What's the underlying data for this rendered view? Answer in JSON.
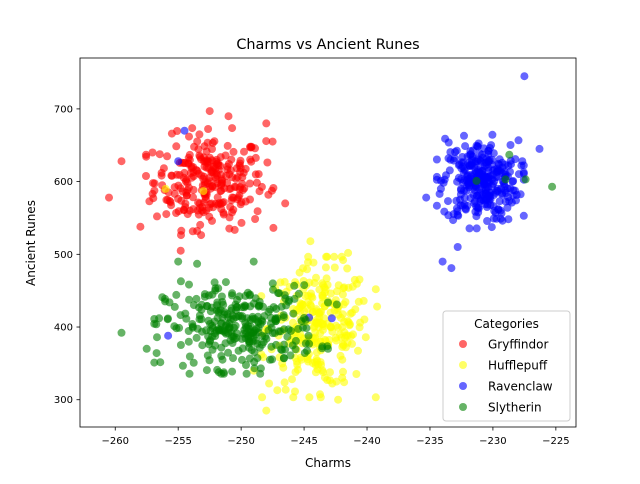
{
  "chart_data": {
    "type": "scatter",
    "title": "Charms vs Ancient Runes",
    "xlabel": "Charms",
    "ylabel": "Ancient Runes",
    "xlim": [
      -262.8,
      -223.4
    ],
    "ylim": [
      262.5,
      770
    ],
    "xticks": [
      -260,
      -255,
      -250,
      -245,
      -240,
      -235,
      -230,
      -225
    ],
    "xtick_labels": [
      "−260",
      "−255",
      "−250",
      "−245",
      "−240",
      "−235",
      "−230",
      "−225"
    ],
    "yticks": [
      300,
      400,
      500,
      600,
      700
    ],
    "ytick_labels": [
      "300",
      "400",
      "500",
      "600",
      "700"
    ],
    "grid": false,
    "legend": {
      "title": "Categories",
      "placement": "lower-right"
    },
    "series": [
      {
        "name": "Gryffindor",
        "color": "#ff0000",
        "cluster": {
          "cx": -252.5,
          "cy": 600,
          "sx": 2.2,
          "sy": 32,
          "n": 260
        },
        "outliers": [
          [
            -260.5,
            578
          ],
          [
            -259.5,
            628
          ],
          [
            -258.0,
            538
          ],
          [
            -255.5,
            666
          ],
          [
            -252.5,
            697
          ],
          [
            -251.0,
            690
          ],
          [
            -248.0,
            680
          ],
          [
            -246.5,
            570
          ],
          [
            -254.8,
            505
          ],
          [
            -253.5,
            532
          ],
          [
            -257.0,
            598
          ],
          [
            -247.5,
            655
          ]
        ]
      },
      {
        "name": "Hufflepuff",
        "color": "#ffff00",
        "cluster": {
          "cx": -243.8,
          "cy": 400,
          "sx": 2.0,
          "sy": 42,
          "n": 260
        },
        "outliers": [
          [
            -248.0,
            285
          ],
          [
            -239.3,
            452
          ],
          [
            -244.5,
            518
          ],
          [
            -242.3,
            300
          ],
          [
            -249.0,
            340
          ],
          [
            -256.0,
            590
          ],
          [
            -253.0,
            587
          ],
          [
            -241.5,
            502
          ]
        ]
      },
      {
        "name": "Ravenclaw",
        "color": "#0000ff",
        "cluster": {
          "cx": -231.0,
          "cy": 600,
          "sx": 1.5,
          "sy": 28,
          "n": 300
        },
        "outliers": [
          [
            -227.5,
            745
          ],
          [
            -233.8,
            659
          ],
          [
            -234.0,
            490
          ],
          [
            -233.3,
            481
          ],
          [
            -232.8,
            510
          ],
          [
            -226.3,
            645
          ],
          [
            -235.3,
            578
          ],
          [
            -255.0,
            628
          ],
          [
            -254.5,
            670
          ],
          [
            -255.8,
            388
          ],
          [
            -244.6,
            413
          ],
          [
            -242.8,
            412
          ]
        ]
      },
      {
        "name": "Slytherin",
        "color": "#008000",
        "cluster": {
          "cx": -250.0,
          "cy": 400,
          "sx": 3.0,
          "sy": 28,
          "n": 300
        },
        "outliers": [
          [
            -259.5,
            392
          ],
          [
            -257.5,
            370
          ],
          [
            -255.0,
            490
          ],
          [
            -253.5,
            487
          ],
          [
            -249.0,
            490
          ],
          [
            -225.3,
            593
          ],
          [
            -227.4,
            603
          ],
          [
            -229.0,
            603
          ],
          [
            -231.3,
            601
          ],
          [
            -228.7,
            637
          ],
          [
            -242.4,
            431
          ]
        ]
      }
    ]
  }
}
